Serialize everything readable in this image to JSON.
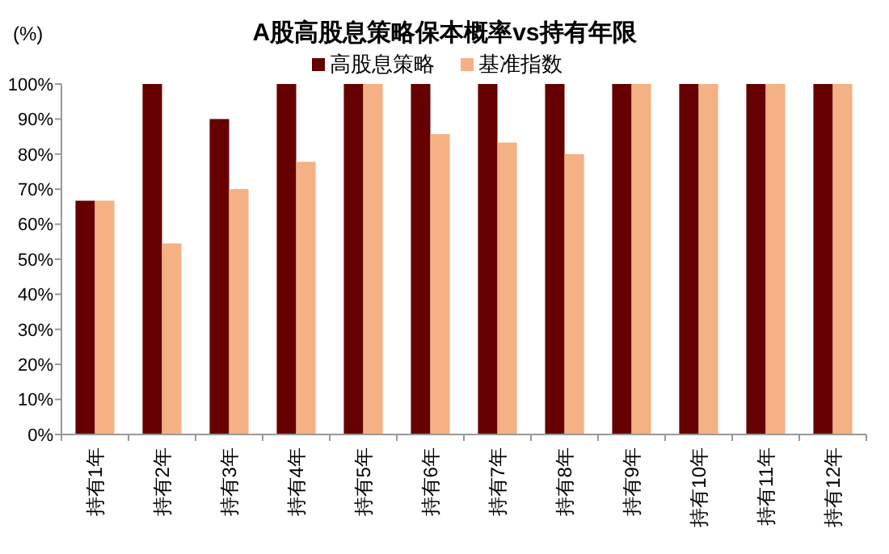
{
  "chart_data": {
    "type": "bar",
    "title": "A股高股息策略保本概率vs持有年限",
    "ylabel": "(%)",
    "categories": [
      "持有1年",
      "持有2年",
      "持有3年",
      "持有4年",
      "持有5年",
      "持有6年",
      "持有7年",
      "持有8年",
      "持有9年",
      "持有10年",
      "持有11年",
      "持有12年"
    ],
    "series": [
      {
        "name": "高股息策略",
        "color": "#660000",
        "values": [
          66.7,
          100,
          90,
          100,
          100,
          100,
          100,
          100,
          100,
          100,
          100,
          100
        ]
      },
      {
        "name": "基准指数",
        "color": "#f4b183",
        "values": [
          66.7,
          54.5,
          70,
          77.8,
          100,
          85.7,
          83.3,
          80,
          100,
          100,
          100,
          100
        ]
      }
    ],
    "ylim": [
      0,
      100
    ],
    "yticks": [
      {
        "value": 0,
        "label": "0%"
      },
      {
        "value": 10,
        "label": "10%"
      },
      {
        "value": 20,
        "label": "20%"
      },
      {
        "value": 30,
        "label": "30%"
      },
      {
        "value": 40,
        "label": "40%"
      },
      {
        "value": 50,
        "label": "50%"
      },
      {
        "value": 60,
        "label": "60%"
      },
      {
        "value": 70,
        "label": "70%"
      },
      {
        "value": 80,
        "label": "80%"
      },
      {
        "value": 90,
        "label": "90%"
      },
      {
        "value": 100,
        "label": "100%"
      }
    ],
    "legend": "top",
    "grid": false
  }
}
